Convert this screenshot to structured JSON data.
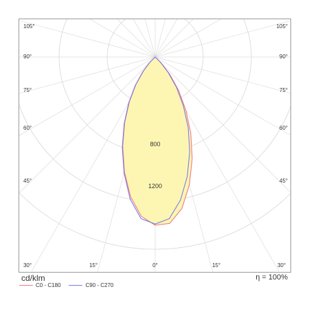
{
  "chart_data": {
    "type": "polar",
    "xlabel": "",
    "ylabel": "",
    "unit": "cd/klm",
    "efficiency_label": "η = 100%",
    "angle_ticks": {
      "left": [
        "105°",
        "90°",
        "75°",
        "60°",
        "45°"
      ],
      "right": [
        "105°",
        "90°",
        "75°",
        "60°",
        "45°"
      ],
      "bottom": [
        "30°",
        "15°",
        "0°",
        "15°",
        "30°"
      ]
    },
    "radial_rings": [
      400,
      800,
      1200,
      1600
    ],
    "ring_labels": [
      "800",
      "1200"
    ],
    "fill_color": "#fdf6b3",
    "grid": true,
    "legend_position": "bottom-left",
    "series": [
      {
        "name": "C0 - C180",
        "color": "#f07a7a",
        "angles_deg": [
          -60,
          -45,
          -40,
          -35,
          -30,
          -25,
          -20,
          -15,
          -10,
          -5,
          0,
          5,
          10,
          15,
          20,
          25,
          30,
          35,
          40,
          45,
          60
        ],
        "values": [
          0,
          60,
          150,
          280,
          430,
          600,
          790,
          990,
          1180,
          1330,
          1400,
          1390,
          1280,
          1100,
          900,
          700,
          510,
          340,
          190,
          70,
          0
        ]
      },
      {
        "name": "C90 - C270",
        "color": "#7a7ae8",
        "angles_deg": [
          -60,
          -45,
          -40,
          -35,
          -30,
          -25,
          -20,
          -15,
          -10,
          -5,
          0,
          5,
          10,
          15,
          20,
          25,
          30,
          35,
          40,
          45,
          60
        ],
        "values": [
          0,
          70,
          160,
          290,
          440,
          610,
          800,
          1000,
          1200,
          1350,
          1390,
          1350,
          1210,
          1030,
          840,
          650,
          470,
          310,
          170,
          60,
          0
        ]
      }
    ]
  }
}
